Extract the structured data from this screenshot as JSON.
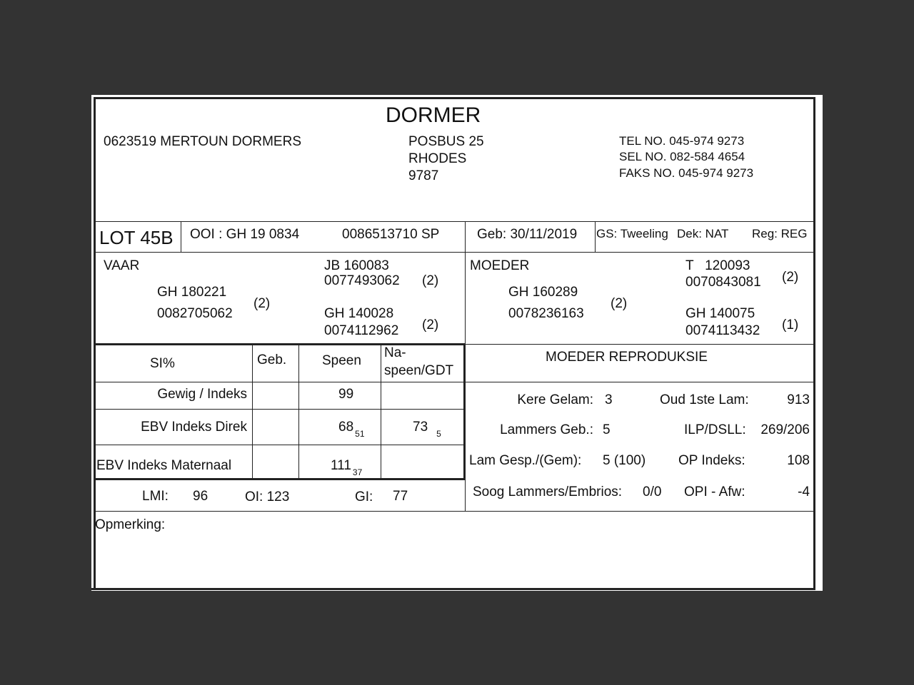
{
  "title": "DORMER",
  "breeder": {
    "name": "0623519 MERTOUN DORMERS",
    "address": [
      "POSBUS 25",
      "RHODES",
      "9787"
    ],
    "contacts": [
      "TEL NO. 045-974 9273",
      "SEL NO. 082-584 4654",
      "FAKS NO. 045-974 9273"
    ]
  },
  "lot": {
    "lot": "LOT 45B",
    "ooi": "OOI : GH 19 0834",
    "id": "0086513710  SP",
    "geb": "Geb: 30/11/2019",
    "gs": "GS: Tweeling",
    "dek": "Dek: NAT",
    "reg": "Reg: REG"
  },
  "pedigree": {
    "vaar": {
      "label": "VAAR",
      "id": "GH  180221",
      "num": "0082705062",
      "grade": "(2)",
      "sire": {
        "id": "JB  160083",
        "num": "0077493062",
        "grade": "(2)"
      },
      "dam": {
        "id": "GH  140028",
        "num": "0074112962",
        "grade": "(2)"
      }
    },
    "moeder": {
      "label": "MOEDER",
      "id": "GH  160289",
      "num": "0078236163",
      "grade": "(2)",
      "sire": {
        "id": "T   120093",
        "num": "0070843081",
        "grade": "(2)"
      },
      "dam": {
        "id": "GH  140075",
        "num": "0074113432",
        "grade": "(1)"
      }
    }
  },
  "si_table": {
    "headers": [
      "SI%",
      "Geb.",
      "Speen",
      "Na-",
      "speen/GDT"
    ],
    "rows": [
      {
        "label": "Gewig / Indeks",
        "speen": "99"
      },
      {
        "label": "EBV Indeks Direk",
        "speen": "68",
        "speen_sub": "51",
        "naspeen": "73",
        "naspeen_sub": "5"
      },
      {
        "label": "EBV Indeks Maternaal",
        "speen": "111",
        "speen_sub": "37"
      }
    ]
  },
  "indices": {
    "lmi_label": "LMI:",
    "lmi": "96",
    "oi": "OI: 123",
    "gi_label": "GI:",
    "gi": "77"
  },
  "reproduction": {
    "title": "MOEDER REPRODUKSIE",
    "items": [
      {
        "label": "Kere Gelam:",
        "value": "3"
      },
      {
        "label": "Oud 1ste Lam:",
        "value": "913"
      },
      {
        "label": "Lammers Geb.:",
        "value": "5"
      },
      {
        "label": "ILP/DSLL:",
        "value": "269/206"
      },
      {
        "label": "Lam Gesp./(Gem):",
        "value": "5 (100)"
      },
      {
        "label": "OP Indeks:",
        "value": "108"
      },
      {
        "label": "Soog Lammers/Embrios:",
        "value": "0/0"
      },
      {
        "label": "OPI - Afw:",
        "value": "-4"
      }
    ]
  },
  "remark_label": "Opmerking:"
}
